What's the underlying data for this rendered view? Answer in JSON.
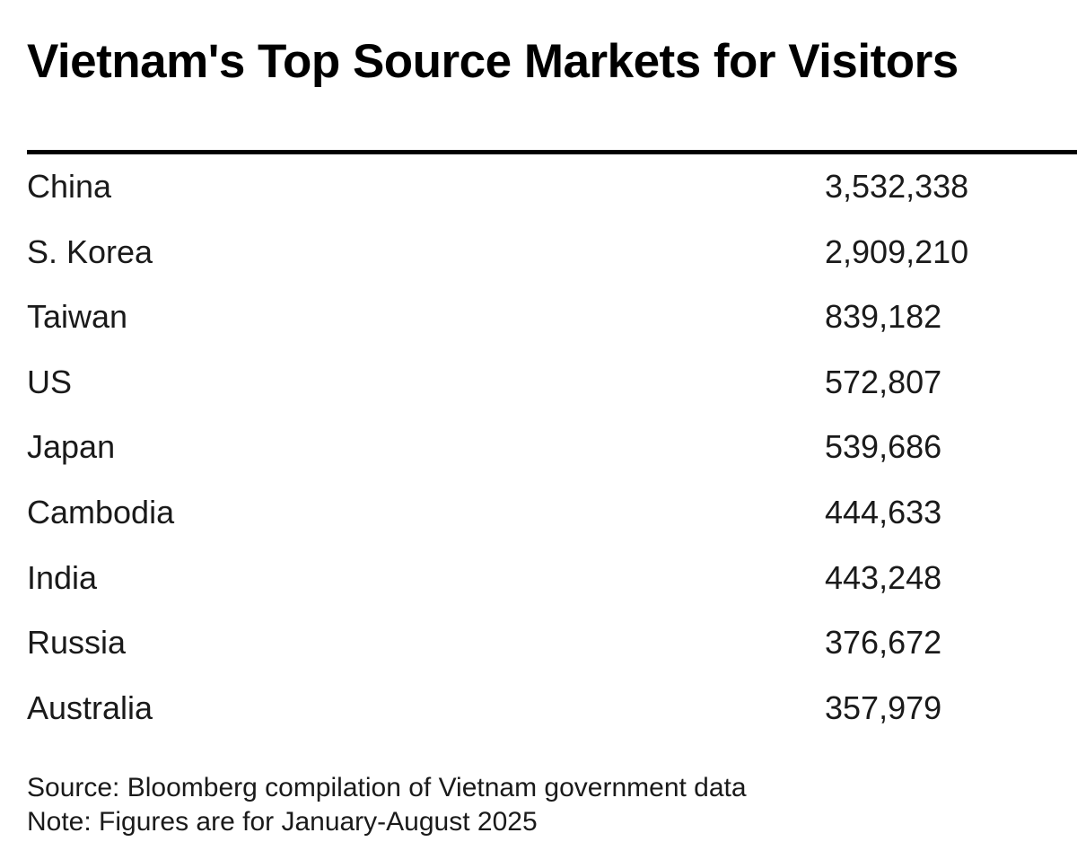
{
  "chart_data": {
    "type": "table",
    "title": "Vietnam's Top Source Markets for Visitors",
    "columns": [
      "",
      ""
    ],
    "rows": [
      {
        "market": "China",
        "visitors": "3,532,338"
      },
      {
        "market": "S. Korea",
        "visitors": "2,909,210"
      },
      {
        "market": "Taiwan",
        "visitors": "839,182"
      },
      {
        "market": "US",
        "visitors": "572,807"
      },
      {
        "market": "Japan",
        "visitors": "539,686"
      },
      {
        "market": "Cambodia",
        "visitors": "444,633"
      },
      {
        "market": "India",
        "visitors": "443,248"
      },
      {
        "market": "Russia",
        "visitors": "376,672"
      },
      {
        "market": "Australia",
        "visitors": "357,979"
      }
    ],
    "values": [
      3532338,
      2909210,
      839182,
      572807,
      539686,
      444633,
      443248,
      376672,
      357979
    ],
    "source": "Source: Bloomberg compilation of Vietnam government data",
    "note": "Note: Figures are for January-August 2025"
  }
}
